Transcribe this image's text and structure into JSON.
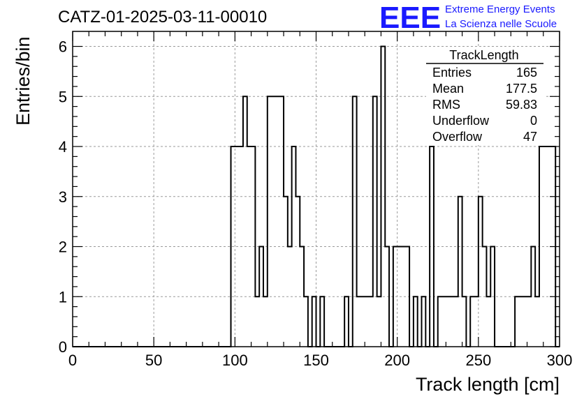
{
  "title": "CATZ-01-2025-03-11-00010",
  "logo": {
    "mark": "EEE",
    "line1": "Extreme Energy Events",
    "line2": "La Scienza nelle Scuole",
    "color": "#1a1aff"
  },
  "stats_box": {
    "title": "TrackLength",
    "rows": [
      {
        "label": "Entries",
        "value": "165"
      },
      {
        "label": "Mean",
        "value": "177.5"
      },
      {
        "label": "RMS",
        "value": "59.83"
      },
      {
        "label": "Underflow",
        "value": "0"
      },
      {
        "label": "Overflow",
        "value": "47"
      }
    ]
  },
  "chart_data": {
    "type": "histogram",
    "title": "CATZ-01-2025-03-11-00010",
    "xlabel": "Track length [cm]",
    "ylabel": "Entries/bin",
    "xlim": [
      0,
      300
    ],
    "ylim": [
      0,
      6.3
    ],
    "bin_width": 2.5,
    "x_ticks": [
      0,
      50,
      100,
      150,
      200,
      250,
      300
    ],
    "y_ticks": [
      0,
      1,
      2,
      3,
      4,
      5,
      6
    ],
    "grid": true,
    "line_color": "#000000",
    "bins": [
      {
        "x": 97.5,
        "count": 4
      },
      {
        "x": 100,
        "count": 4
      },
      {
        "x": 102.5,
        "count": 4
      },
      {
        "x": 105,
        "count": 5
      },
      {
        "x": 107.5,
        "count": 4
      },
      {
        "x": 110,
        "count": 4
      },
      {
        "x": 112.5,
        "count": 1
      },
      {
        "x": 115,
        "count": 2
      },
      {
        "x": 117.5,
        "count": 1
      },
      {
        "x": 120,
        "count": 5
      },
      {
        "x": 122.5,
        "count": 5
      },
      {
        "x": 125,
        "count": 5
      },
      {
        "x": 127.5,
        "count": 5
      },
      {
        "x": 130,
        "count": 3
      },
      {
        "x": 132.5,
        "count": 2
      },
      {
        "x": 135,
        "count": 4
      },
      {
        "x": 137.5,
        "count": 3
      },
      {
        "x": 140,
        "count": 2
      },
      {
        "x": 142.5,
        "count": 1
      },
      {
        "x": 147.5,
        "count": 1
      },
      {
        "x": 150,
        "count": 0
      },
      {
        "x": 152.5,
        "count": 1
      },
      {
        "x": 167.5,
        "count": 1
      },
      {
        "x": 172.5,
        "count": 5
      },
      {
        "x": 175,
        "count": 1
      },
      {
        "x": 177.5,
        "count": 1
      },
      {
        "x": 180,
        "count": 1
      },
      {
        "x": 182.5,
        "count": 1
      },
      {
        "x": 185,
        "count": 5
      },
      {
        "x": 187.5,
        "count": 1
      },
      {
        "x": 190,
        "count": 6
      },
      {
        "x": 192.5,
        "count": 2
      },
      {
        "x": 197.5,
        "count": 2
      },
      {
        "x": 200,
        "count": 2
      },
      {
        "x": 202.5,
        "count": 2
      },
      {
        "x": 205,
        "count": 2
      },
      {
        "x": 210,
        "count": 1
      },
      {
        "x": 215,
        "count": 1
      },
      {
        "x": 217.5,
        "count": 0
      },
      {
        "x": 220,
        "count": 4
      },
      {
        "x": 222.5,
        "count": 0
      },
      {
        "x": 225,
        "count": 1
      },
      {
        "x": 227.5,
        "count": 1
      },
      {
        "x": 230,
        "count": 1
      },
      {
        "x": 232.5,
        "count": 1
      },
      {
        "x": 235,
        "count": 1
      },
      {
        "x": 237.5,
        "count": 3
      },
      {
        "x": 240,
        "count": 1
      },
      {
        "x": 245,
        "count": 1
      },
      {
        "x": 247.5,
        "count": 1
      },
      {
        "x": 250,
        "count": 3
      },
      {
        "x": 252.5,
        "count": 2
      },
      {
        "x": 255,
        "count": 1
      },
      {
        "x": 257.5,
        "count": 2
      },
      {
        "x": 272.5,
        "count": 1
      },
      {
        "x": 275,
        "count": 1
      },
      {
        "x": 277.5,
        "count": 1
      },
      {
        "x": 280,
        "count": 1
      },
      {
        "x": 282.5,
        "count": 2
      },
      {
        "x": 285,
        "count": 1
      },
      {
        "x": 287.5,
        "count": 4
      },
      {
        "x": 290,
        "count": 4
      },
      {
        "x": 292.5,
        "count": 4
      },
      {
        "x": 295,
        "count": 4
      }
    ]
  }
}
